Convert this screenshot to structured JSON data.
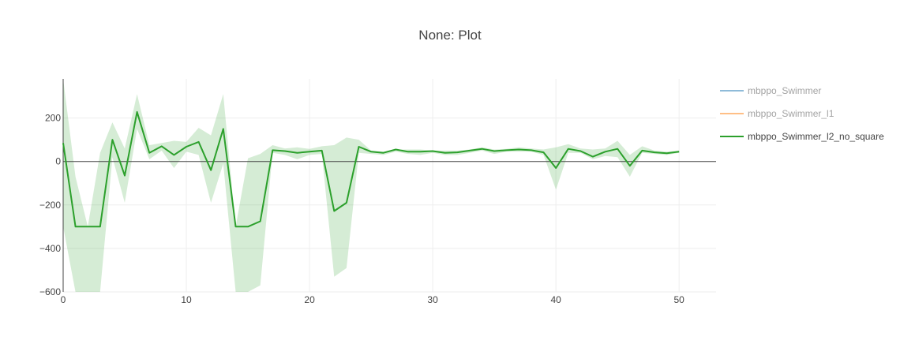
{
  "chart_data": {
    "type": "line",
    "title": "None: Plot",
    "xlabel": "",
    "ylabel": "",
    "xlim": [
      0,
      53
    ],
    "ylim": [
      -600,
      380
    ],
    "xticks": [
      0,
      10,
      20,
      30,
      40,
      50
    ],
    "yticks": [
      200,
      0,
      -200,
      -400,
      -600
    ],
    "ytick_labels": [
      "200",
      "0",
      "−200",
      "−400",
      "−600"
    ],
    "grid": true,
    "legend_position": "right",
    "series": [
      {
        "name": "mbppo_Swimmer",
        "color": "#1f77b4",
        "visible": false,
        "x": [],
        "y": []
      },
      {
        "name": "mbppo_Swimmer_l1",
        "color": "#ff7f0e",
        "visible": false,
        "x": [],
        "y": []
      },
      {
        "name": "mbppo_Swimmer_l2_no_square",
        "color": "#2ca02c",
        "band_color": "#2ca02c",
        "visible": true,
        "x": [
          0,
          1,
          2,
          3,
          4,
          5,
          6,
          7,
          8,
          9,
          10,
          11,
          12,
          13,
          14,
          15,
          16,
          17,
          18,
          19,
          20,
          21,
          22,
          23,
          24,
          25,
          26,
          27,
          28,
          29,
          30,
          31,
          32,
          33,
          34,
          35,
          36,
          37,
          38,
          39,
          40,
          41,
          42,
          43,
          44,
          45,
          46,
          47,
          48,
          49,
          50
        ],
        "y": [
          85,
          -300,
          -300,
          -300,
          100,
          -65,
          228,
          40,
          70,
          30,
          68,
          90,
          -40,
          150,
          -300,
          -300,
          -275,
          52,
          48,
          40,
          45,
          50,
          -228,
          -190,
          68,
          45,
          40,
          55,
          45,
          45,
          48,
          40,
          42,
          50,
          58,
          48,
          52,
          55,
          52,
          42,
          -30,
          58,
          48,
          22,
          45,
          58,
          -20,
          50,
          42,
          38,
          45
        ],
        "upper": [
          380,
          -70,
          -300,
          40,
          180,
          60,
          310,
          75,
          85,
          95,
          90,
          155,
          120,
          310,
          -300,
          15,
          35,
          75,
          60,
          65,
          58,
          70,
          75,
          110,
          100,
          50,
          45,
          55,
          55,
          55,
          50,
          50,
          50,
          55,
          65,
          55,
          58,
          65,
          60,
          55,
          65,
          80,
          60,
          55,
          60,
          95,
          30,
          70,
          50,
          45,
          50
        ],
        "lower": [
          -300,
          -600,
          -600,
          -600,
          20,
          -190,
          150,
          10,
          50,
          -30,
          45,
          30,
          -190,
          -10,
          -600,
          -600,
          -570,
          40,
          30,
          10,
          30,
          35,
          -530,
          -490,
          40,
          35,
          30,
          45,
          35,
          30,
          40,
          30,
          30,
          40,
          50,
          35,
          45,
          45,
          45,
          30,
          -130,
          40,
          40,
          10,
          25,
          20,
          -70,
          40,
          35,
          30,
          40
        ]
      }
    ]
  }
}
